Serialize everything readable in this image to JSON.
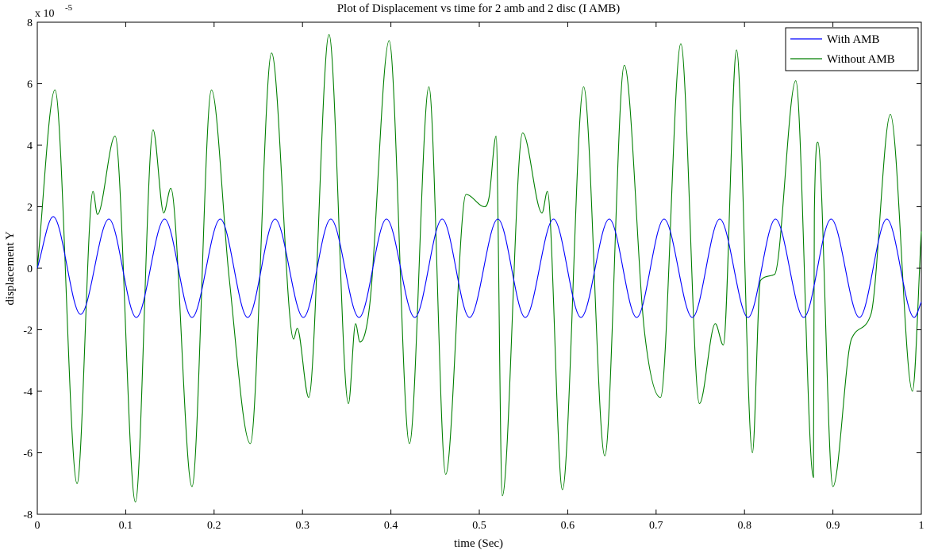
{
  "chart_data": {
    "type": "line",
    "title": "Plot of Displacement vs time for 2 amb and 2 disc (I AMB)",
    "xlabel": "time (Sec)",
    "ylabel": "displacement Y",
    "y_exponent_label": "x 10",
    "y_exponent_power": "-5",
    "xlim": [
      0,
      1
    ],
    "ylim": [
      -8,
      8
    ],
    "xticks": [
      0,
      0.1,
      0.2,
      0.3,
      0.4,
      0.5,
      0.6,
      0.7,
      0.8,
      0.9,
      1
    ],
    "xtick_labels": [
      "0",
      "0.1",
      "0.2",
      "0.3",
      "0.4",
      "0.5",
      "0.6",
      "0.7",
      "0.8",
      "0.9",
      "1"
    ],
    "yticks": [
      -8,
      -6,
      -4,
      -2,
      0,
      2,
      4,
      6,
      8
    ],
    "ytick_labels": [
      "-8",
      "-6",
      "-4",
      "-2",
      "0",
      "2",
      "4",
      "6",
      "8"
    ],
    "grid": false,
    "legend_position": "top-right",
    "series": [
      {
        "name": "With AMB",
        "color": "#0000ff",
        "x": [
          0,
          0.018,
          0.049,
          0.081,
          0.112,
          0.144,
          0.175,
          0.207,
          0.238,
          0.269,
          0.301,
          0.332,
          0.364,
          0.395,
          0.427,
          0.458,
          0.489,
          0.521,
          0.552,
          0.584,
          0.615,
          0.647,
          0.678,
          0.709,
          0.741,
          0.772,
          0.804,
          0.835,
          0.867,
          0.898,
          0.93,
          0.961,
          0.992,
          1.0
        ],
        "y": [
          0,
          1.68,
          -1.5,
          1.6,
          -1.6,
          1.6,
          -1.6,
          1.6,
          -1.6,
          1.6,
          -1.6,
          1.6,
          -1.6,
          1.6,
          -1.6,
          1.6,
          -1.6,
          1.6,
          -1.6,
          1.6,
          -1.6,
          1.6,
          -1.6,
          1.6,
          -1.6,
          1.6,
          -1.6,
          1.6,
          -1.6,
          1.6,
          -1.6,
          1.6,
          -1.6,
          -1.1
        ]
      },
      {
        "name": "Without AMB",
        "color": "#007f00",
        "x": [
          0,
          0.02,
          0.045,
          0.063,
          0.068,
          0.088,
          0.111,
          0.131,
          0.143,
          0.151,
          0.175,
          0.197,
          0.217,
          0.241,
          0.265,
          0.29,
          0.294,
          0.307,
          0.33,
          0.352,
          0.36,
          0.365,
          0.376,
          0.398,
          0.421,
          0.443,
          0.462,
          0.485,
          0.506,
          0.511,
          0.519,
          0.526,
          0.549,
          0.571,
          0.577,
          0.594,
          0.618,
          0.642,
          0.664,
          0.687,
          0.705,
          0.728,
          0.749,
          0.767,
          0.776,
          0.791,
          0.809,
          0.818,
          0.834,
          0.858,
          0.878,
          0.879,
          0.883,
          0.9,
          0.921,
          0.943,
          0.965,
          0.99,
          1.0
        ],
        "y": [
          0,
          5.8,
          -7.0,
          2.5,
          1.75,
          4.3,
          -7.6,
          4.5,
          1.8,
          2.6,
          -7.1,
          5.8,
          -0.3,
          -5.7,
          7.0,
          -2.3,
          -1.95,
          -4.2,
          7.6,
          -4.4,
          -1.8,
          -2.4,
          -1.2,
          7.4,
          -5.7,
          5.9,
          -6.7,
          2.4,
          2.0,
          2.3,
          4.3,
          -7.4,
          4.4,
          1.8,
          2.5,
          -7.2,
          5.9,
          -6.1,
          6.6,
          -2.1,
          -4.2,
          7.3,
          -4.4,
          -1.8,
          -2.5,
          7.1,
          -6.0,
          -0.4,
          -0.2,
          6.1,
          -6.8,
          1.8,
          4.1,
          -7.1,
          -2.3,
          -1.5,
          5.0,
          -4.0,
          1.2
        ]
      }
    ]
  }
}
